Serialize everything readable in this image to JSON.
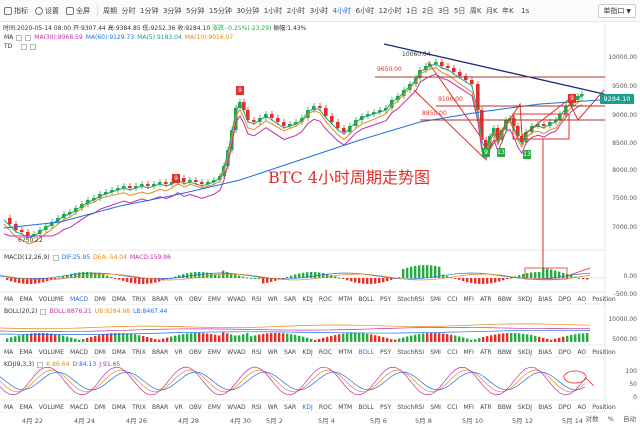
{
  "toolbar": {
    "indicators_label": "指标",
    "settings_label": "设置",
    "fullscreen_label": "全屏",
    "timeframes": [
      "周期",
      "分时",
      "1分钟",
      "3分钟",
      "5分钟",
      "15分钟",
      "30分钟",
      "1小时",
      "2小时",
      "3小时",
      "4小时",
      "6小时",
      "12小时",
      "1日",
      "2日",
      "3日",
      "5日",
      "周K",
      "月K",
      "年K"
    ],
    "active_timeframe": "4小时",
    "extra": "1s",
    "mode_select": "单指口"
  },
  "info": {
    "time": "时间:2020-05-14 08:00",
    "open": "开:9307.44",
    "high": "高:9384.85",
    "low": "低:9252.36",
    "close": "收:9284.10",
    "change": "涨跌:-0.25%(-23.29)",
    "amplitude": "振幅:1.43%"
  },
  "ma_legend": {
    "name": "MA",
    "ma30": "MA(30):8968.59",
    "ma60": "MA(60):9129.73",
    "ma5": "MA(5):9183.04",
    "ma10": "MA(10):9016.07"
  },
  "td_label": "TD",
  "chart_title": "BTC 4小时周期走势图",
  "annotations": {
    "high_label": "10060.04",
    "level_9650": "9650.00",
    "level_9100": "9100.00",
    "level_8850": "8850.00",
    "low_label": "6750.22",
    "current_price": "9284.10"
  },
  "td_markers": [
    "9",
    "9",
    "9",
    "13",
    "13",
    "9"
  ],
  "main_axis": [
    "10000.00",
    "9500.00",
    "9000.00",
    "8500.00",
    "8000.00",
    "7500.00",
    "7000.00"
  ],
  "macd_legend": {
    "name": "MACD(12,26,9)",
    "dif": "DIF:25.95",
    "dea": "DEA:-54.04",
    "macd": "MACD:159.96"
  },
  "macd_axis": [
    "0.00",
    "-500.00"
  ],
  "tabs": [
    "MA",
    "EMA",
    "VOLUME",
    "MACD",
    "DMI",
    "DMA",
    "TRIX",
    "BRAR",
    "VR",
    "OBV",
    "EMV",
    "WVAD",
    "RSI",
    "WR",
    "SAR",
    "KDJ",
    "ROC",
    "MTM",
    "BOLL",
    "PSY",
    "StochRSI",
    "SMI",
    "CCI",
    "MFI",
    "ATR",
    "BBW",
    "SKDJ",
    "BIAS",
    "DPO",
    "AO",
    "Position"
  ],
  "tabs_active_1": "MACD",
  "tabs_active_2": "BOLL",
  "tabs_active_3": "KDJ",
  "boll_legend": {
    "name": "BOLL(20,2)",
    "boll": "BOLL:8876.21",
    "ub": "UB:9284.98",
    "lb": "LB:8467.44"
  },
  "boll_axis": [
    "10000.00",
    "5000.00"
  ],
  "kdj_legend": {
    "name": "KDJ(9,3,3)",
    "k": "K:86.64",
    "d": "D:84.13",
    "j": "J:91.65"
  },
  "kdj_axis": [
    "100",
    "50",
    "0"
  ],
  "x_labels": [
    "4月 22",
    "4月 24",
    "4月 26",
    "4月 28",
    "4月 30",
    "5月 2",
    "5月 4",
    "5月 6",
    "5月 8",
    "5月 10",
    "5月 12",
    "5月 14"
  ],
  "footer": {
    "auto": "对数",
    "pct": "%",
    "log": "自动"
  },
  "colors": {
    "up": "#27a844",
    "down": "#e0302a",
    "accent": "#1e6fe8",
    "annotation": "#e0302a"
  }
}
